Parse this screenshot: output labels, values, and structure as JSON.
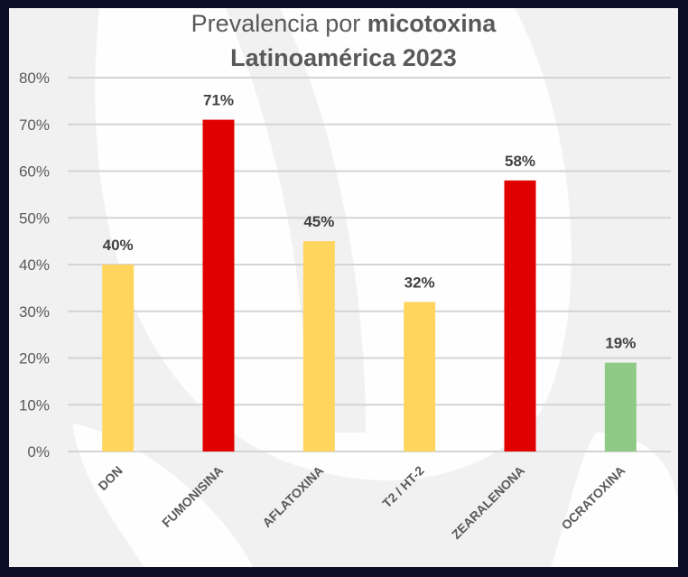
{
  "chart_data": {
    "type": "bar",
    "title_line1_regular": "Prevalencia por ",
    "title_line1_bold": "micotoxina",
    "title_line2": "Latinoamérica 2023",
    "categories": [
      "DON",
      "FUMONISINA",
      "AFLATOXINA",
      "T2 / HT-2",
      "ZEARALENONA",
      "OCRATOXINA"
    ],
    "values": [
      40,
      71,
      45,
      32,
      58,
      19
    ],
    "data_labels": [
      "40%",
      "71%",
      "45%",
      "32%",
      "58%",
      "19%"
    ],
    "bar_colors": [
      "#ffd55e",
      "#e00000",
      "#ffd55e",
      "#ffd55e",
      "#e00000",
      "#8fc986"
    ],
    "ylim": [
      0,
      80
    ],
    "yticks": [
      0,
      10,
      20,
      30,
      40,
      50,
      60,
      70,
      80
    ],
    "ytick_labels": [
      "0%",
      "10%",
      "20%",
      "30%",
      "40%",
      "50%",
      "60%",
      "70%",
      "80%"
    ],
    "xlabel": "",
    "ylabel": "",
    "grid": true,
    "legend": "none"
  }
}
